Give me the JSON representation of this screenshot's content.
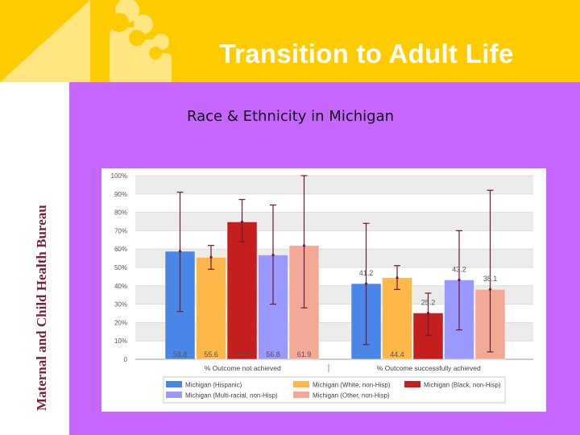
{
  "slide": {
    "title": "Transition to Adult Life",
    "sidebar_text": "Maternal and Child Health Bureau",
    "subtitle": "Race & Ethnicity in Michigan"
  },
  "colors": {
    "background": "#c766ff",
    "header": "#ffcc00",
    "title_text": "#ffffff",
    "sidebar_text": "#7a1f3d",
    "logo": "#ffe680"
  },
  "chart_data": {
    "type": "bar",
    "categories": [
      "% Outcome not achieved",
      "% Outcome successfully achieved"
    ],
    "ylim": [
      0,
      100
    ],
    "yticks": [
      "0",
      "10%",
      "20%",
      "30%",
      "40%",
      "50%",
      "60%",
      "70%",
      "80%",
      "90%",
      "100%"
    ],
    "grid": true,
    "legend_position": "bottom",
    "series": [
      {
        "name": "Michigan (Hispanic)",
        "color": "#4a86e8",
        "values": [
          58.8,
          41.2
        ],
        "labels": [
          "58.8",
          "41.2"
        ],
        "err_low": [
          26,
          8
        ],
        "err_high": [
          91,
          74
        ]
      },
      {
        "name": "Michigan (White, non-Hisp)",
        "color": "#ffb74a",
        "values": [
          55.6,
          44.4
        ],
        "labels": [
          "55.6",
          "44.4"
        ],
        "err_low": [
          49,
          38
        ],
        "err_high": [
          62,
          51
        ]
      },
      {
        "name": "Michigan (Black, non-Hisp)",
        "color": "#c41e1e",
        "values": [
          74.8,
          25.2
        ],
        "labels": [
          "74.8",
          "25.2"
        ],
        "err_low": [
          64,
          13
        ],
        "err_high": [
          87,
          36
        ]
      },
      {
        "name": "Michigan (Multi-racial, non-Hisp)",
        "color": "#9999ff",
        "values": [
          56.8,
          43.2
        ],
        "labels": [
          "56.8",
          "43.2"
        ],
        "err_low": [
          30,
          16
        ],
        "err_high": [
          84,
          70
        ]
      },
      {
        "name": "Michigan (Other, non-Hisp)",
        "color": "#f4a896",
        "values": [
          61.9,
          38.1
        ],
        "labels": [
          "61.9",
          "38.1"
        ],
        "err_low": [
          28,
          4
        ],
        "err_high": [
          100,
          92
        ]
      }
    ]
  }
}
